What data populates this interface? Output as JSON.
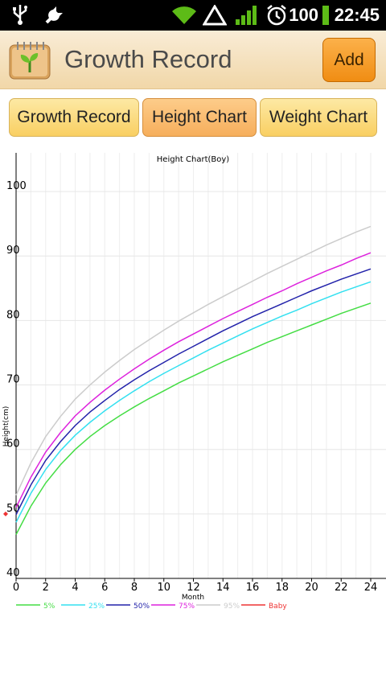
{
  "status_bar": {
    "battery": "100",
    "time": "22:45",
    "icons": [
      "usb-icon",
      "settings-icon",
      "wifi-icon",
      "warning-icon",
      "signal-icon",
      "alarm-icon",
      "battery-icon"
    ]
  },
  "app": {
    "title": "Growth Record",
    "add_label": "Add",
    "logo_icon": "notebook-sprout-icon"
  },
  "tabs": [
    {
      "label": "Growth Record",
      "active": false
    },
    {
      "label": "Height Chart",
      "active": true
    },
    {
      "label": "Weight Chart",
      "active": false
    }
  ],
  "chart_data": {
    "type": "line",
    "title": "Height Chart(Boy)",
    "xlabel": "Month",
    "ylabel": "Height(cm)",
    "xlim": [
      0,
      24
    ],
    "ylim": [
      40,
      106
    ],
    "x_ticks": [
      0,
      2,
      4,
      6,
      8,
      10,
      12,
      14,
      16,
      18,
      20,
      22,
      24
    ],
    "y_ticks": [
      40,
      50,
      60,
      70,
      80,
      90,
      100
    ],
    "grid": true,
    "legend_position": "bottom-left",
    "x": [
      0,
      1,
      2,
      3,
      4,
      5,
      6,
      7,
      8,
      9,
      10,
      11,
      12,
      13,
      14,
      15,
      16,
      17,
      18,
      19,
      20,
      21,
      22,
      23,
      24
    ],
    "series": [
      {
        "name": "5%",
        "color": "#44dd44",
        "values": [
          46.8,
          51.2,
          54.8,
          57.6,
          60.0,
          62.0,
          63.7,
          65.2,
          66.6,
          67.9,
          69.1,
          70.3,
          71.4,
          72.5,
          73.6,
          74.6,
          75.6,
          76.6,
          77.5,
          78.4,
          79.3,
          80.2,
          81.1,
          81.9,
          82.7
        ]
      },
      {
        "name": "25%",
        "color": "#33e0f0",
        "values": [
          48.7,
          53.2,
          56.9,
          59.8,
          62.2,
          64.2,
          66.0,
          67.6,
          69.1,
          70.5,
          71.8,
          73.0,
          74.2,
          75.4,
          76.5,
          77.6,
          78.7,
          79.7,
          80.7,
          81.6,
          82.6,
          83.5,
          84.4,
          85.2,
          86.0
        ]
      },
      {
        "name": "50%",
        "color": "#2222aa",
        "values": [
          49.9,
          54.5,
          58.3,
          61.2,
          63.7,
          65.8,
          67.6,
          69.3,
          70.8,
          72.2,
          73.5,
          74.8,
          76.0,
          77.2,
          78.4,
          79.5,
          80.6,
          81.6,
          82.6,
          83.6,
          84.6,
          85.5,
          86.4,
          87.2,
          88.0
        ]
      },
      {
        "name": "75%",
        "color": "#dd22dd",
        "values": [
          51.0,
          55.7,
          59.6,
          62.6,
          65.2,
          67.3,
          69.2,
          70.9,
          72.5,
          74.0,
          75.4,
          76.7,
          77.9,
          79.1,
          80.3,
          81.4,
          82.5,
          83.6,
          84.6,
          85.7,
          86.7,
          87.7,
          88.6,
          89.6,
          90.5
        ]
      },
      {
        "name": "95%",
        "color": "#cccccc",
        "values": [
          52.9,
          57.9,
          62.0,
          65.1,
          67.8,
          70.0,
          72.0,
          73.8,
          75.5,
          77.0,
          78.5,
          79.9,
          81.2,
          82.5,
          83.7,
          84.9,
          86.1,
          87.3,
          88.4,
          89.5,
          90.6,
          91.7,
          92.7,
          93.7,
          94.6
        ]
      },
      {
        "name": "Baby",
        "color": "#ee3333",
        "points": [
          [
            0,
            50.0
          ]
        ]
      }
    ]
  }
}
